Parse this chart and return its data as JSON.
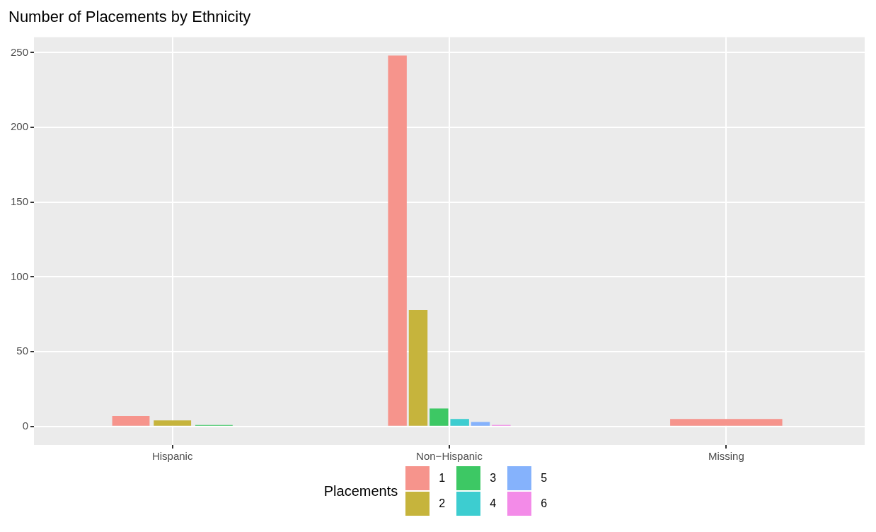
{
  "chart_data": {
    "type": "bar",
    "title": "Number of Placements by Ethnicity",
    "legend_title": "Placements",
    "categories": [
      "Hispanic",
      "Non−Hispanic",
      "Missing"
    ],
    "series": [
      {
        "name": "1",
        "color": "#f6948c",
        "values": [
          7,
          248,
          5
        ]
      },
      {
        "name": "2",
        "color": "#c6b43c",
        "values": [
          4,
          78,
          null
        ]
      },
      {
        "name": "3",
        "color": "#3dc864",
        "values": [
          1,
          12,
          null
        ]
      },
      {
        "name": "4",
        "color": "#3dcdd0",
        "values": [
          null,
          5,
          null
        ]
      },
      {
        "name": "5",
        "color": "#85b2fc",
        "values": [
          null,
          3,
          null
        ]
      },
      {
        "name": "6",
        "color": "#f38be8",
        "values": [
          null,
          1,
          null
        ]
      }
    ],
    "ylim": [
      -12.4,
      260.4
    ],
    "yticks": [
      0,
      50,
      100,
      150,
      200,
      250
    ],
    "grid": true,
    "legend": "bottom"
  }
}
